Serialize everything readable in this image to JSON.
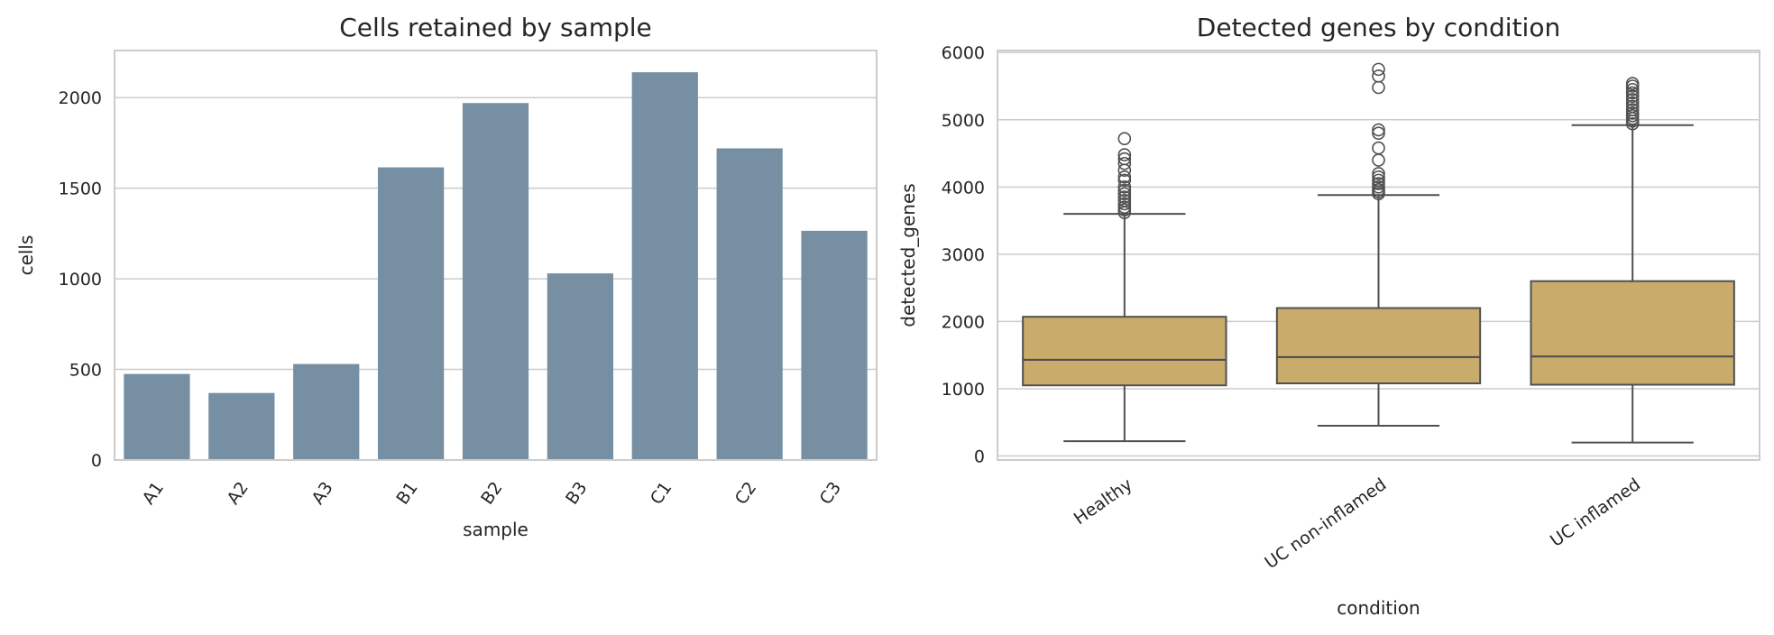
{
  "chart_data": [
    {
      "type": "bar",
      "title": "Cells retained by sample",
      "xlabel": "sample",
      "ylabel": "cells",
      "categories": [
        "A1",
        "A2",
        "A3",
        "B1",
        "B2",
        "B3",
        "C1",
        "C2",
        "C3"
      ],
      "values": [
        475,
        370,
        530,
        1615,
        1970,
        1030,
        2140,
        1720,
        1265
      ],
      "ylim": [
        0,
        2260
      ],
      "yticks": [
        0,
        500,
        1000,
        1500,
        2000
      ],
      "grid": true,
      "bar_color": "#768fa3"
    },
    {
      "type": "box",
      "title": "Detected genes by condition",
      "xlabel": "condition",
      "ylabel": "detected_genes",
      "categories": [
        "Healthy",
        "UC non-inflamed",
        "UC inflamed"
      ],
      "ylim": [
        -60,
        6030
      ],
      "yticks": [
        0,
        1000,
        2000,
        3000,
        4000,
        5000,
        6000
      ],
      "grid": true,
      "box_color": "#c9ab6c",
      "boxes": [
        {
          "q1": 1050,
          "median": 1430,
          "q3": 2070,
          "whisker_low": 220,
          "whisker_high": 3600,
          "fliers": [
            3620,
            3660,
            3700,
            3750,
            3800,
            3850,
            3900,
            3950,
            4000,
            4100,
            4150,
            4250,
            4350,
            4420,
            4480,
            4720
          ]
        },
        {
          "q1": 1080,
          "median": 1470,
          "q3": 2200,
          "whisker_low": 450,
          "whisker_high": 3880,
          "fliers": [
            3900,
            3930,
            3960,
            4000,
            4050,
            4100,
            4150,
            4200,
            4400,
            4580,
            4800,
            4850,
            5480,
            5650,
            5750
          ]
        },
        {
          "q1": 1060,
          "median": 1480,
          "q3": 2600,
          "whisker_low": 200,
          "whisker_high": 4920,
          "fliers": [
            4940,
            4980,
            5020,
            5060,
            5100,
            5150,
            5200,
            5250,
            5300,
            5350,
            5400,
            5450,
            5500,
            5540
          ]
        }
      ]
    }
  ]
}
